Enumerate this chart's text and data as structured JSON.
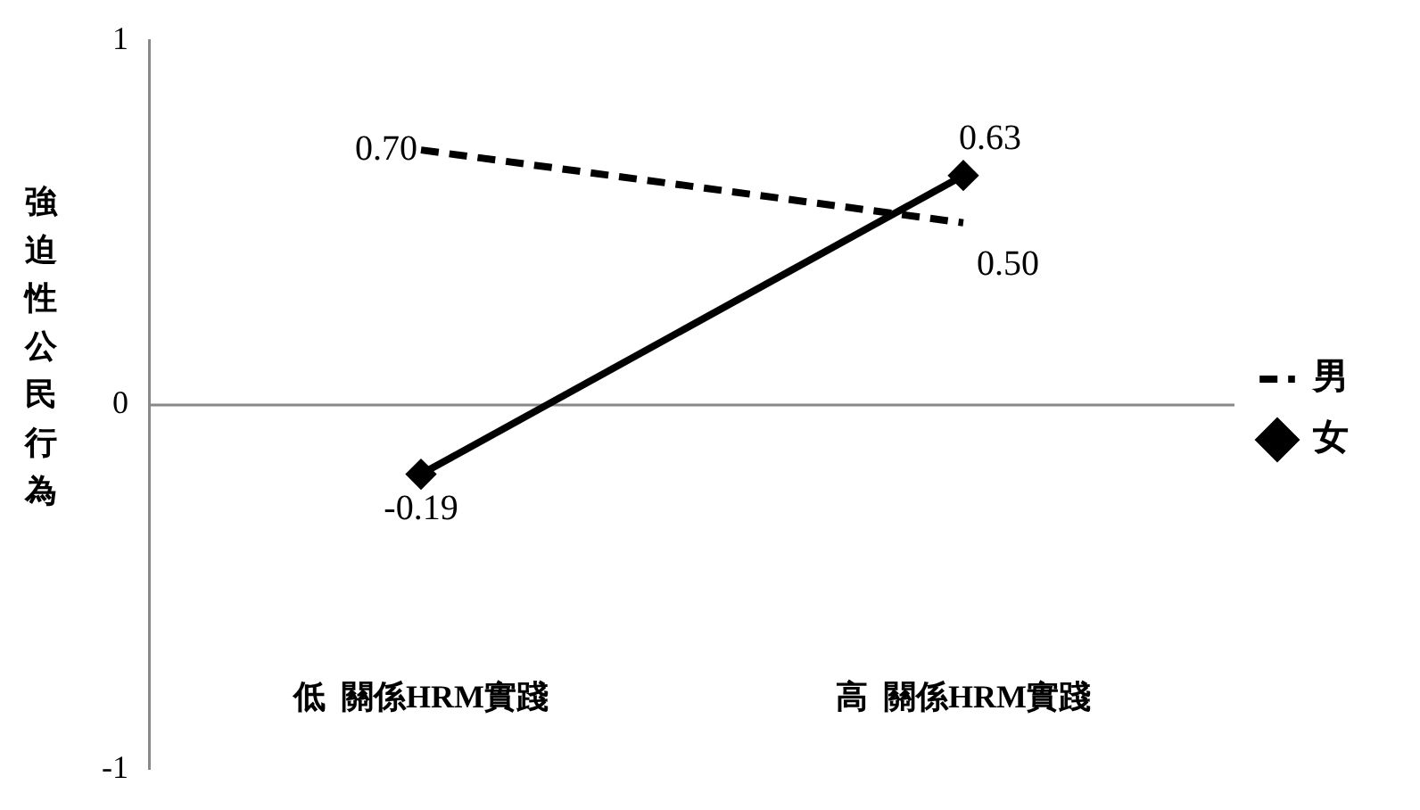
{
  "chart_data": {
    "type": "line",
    "ylabel": "強迫性公民行為",
    "categories": [
      "低  關係HRM實踐",
      "高  關係HRM實踐"
    ],
    "series": [
      {
        "name": "男",
        "color": "#000000",
        "values": [
          0.7,
          0.5
        ],
        "value_labels": [
          "0.70",
          "0.50"
        ],
        "line_style": "dashed",
        "marker": "none"
      },
      {
        "name": "女",
        "color": "#000000",
        "values": [
          -0.19,
          0.63
        ],
        "value_labels": [
          "-0.19",
          "0.63"
        ],
        "line_style": "solid",
        "marker": "diamond"
      }
    ],
    "ylim": [
      -1,
      1
    ],
    "yticks": [
      -1,
      0,
      1
    ],
    "ref_lines": [
      {
        "axis": "y",
        "value": 0,
        "color": "#888888"
      }
    ],
    "legend": "right"
  }
}
